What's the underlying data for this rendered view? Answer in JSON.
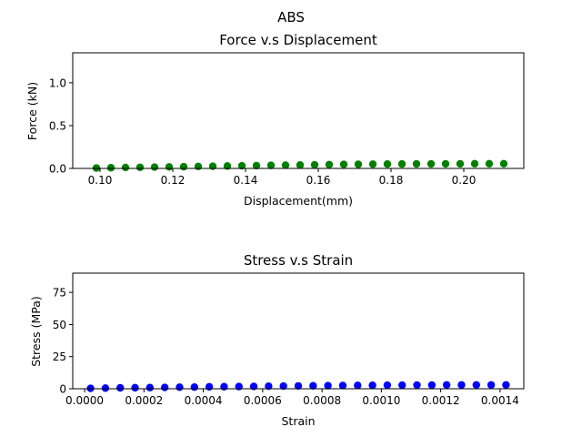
{
  "figure": {
    "suptitle": "ABS"
  },
  "chart_data": [
    {
      "type": "scatter",
      "title": "Force v.s Displacement",
      "xlabel": "Displacement(mm)",
      "ylabel": "Force (kN)",
      "xlim": [
        0.0925,
        0.2165
      ],
      "ylim": [
        0,
        1.35
      ],
      "xticks": [
        0.1,
        0.12,
        0.14,
        0.16,
        0.18,
        0.2
      ],
      "xtick_labels": [
        "0.10",
        "0.12",
        "0.14",
        "0.16",
        "0.18",
        "0.20"
      ],
      "yticks": [
        0.0,
        0.5,
        1.0
      ],
      "ytick_labels": [
        "0.0",
        "0.5",
        "1.0"
      ],
      "grid": false,
      "color": "#008000",
      "series": [
        {
          "x": [
            0.099,
            0.103,
            0.107,
            0.111,
            0.115,
            0.119,
            0.123,
            0.127,
            0.131,
            0.135,
            0.139,
            0.143,
            0.147,
            0.151,
            0.155,
            0.159,
            0.163,
            0.167,
            0.171,
            0.175,
            0.179,
            0.183,
            0.187,
            0.191,
            0.195,
            0.199,
            0.203,
            0.207,
            0.211
          ],
          "y": [
            0.005,
            0.008,
            0.011,
            0.013,
            0.015,
            0.018,
            0.02,
            0.023,
            0.026,
            0.028,
            0.031,
            0.033,
            0.036,
            0.038,
            0.04,
            0.042,
            0.045,
            0.047,
            0.048,
            0.05,
            0.051,
            0.052,
            0.053,
            0.053,
            0.054,
            0.054,
            0.055,
            0.055,
            0.055
          ]
        }
      ]
    },
    {
      "type": "scatter",
      "title": "Stress v.s Strain",
      "xlabel": "Strain",
      "ylabel": "Stress (MPa)",
      "xlim": [
        -4e-05,
        0.00148
      ],
      "ylim": [
        0,
        90
      ],
      "xticks": [
        0.0,
        0.0002,
        0.0004,
        0.0006,
        0.0008,
        0.001,
        0.0012,
        0.0014
      ],
      "xtick_labels": [
        "0.0000",
        "0.0002",
        "0.0004",
        "0.0006",
        "0.0008",
        "0.0010",
        "0.0012",
        "0.0014"
      ],
      "yticks": [
        0,
        25,
        50,
        75
      ],
      "ytick_labels": [
        "0",
        "25",
        "50",
        "75"
      ],
      "grid": false,
      "color": "#0000ff",
      "series": [
        {
          "x": [
            2e-05,
            7e-05,
            0.00012,
            0.00017,
            0.00022,
            0.00027,
            0.00032,
            0.00037,
            0.00042,
            0.00047,
            0.00052,
            0.00057,
            0.00062,
            0.00067,
            0.00072,
            0.00077,
            0.00082,
            0.00087,
            0.00092,
            0.00097,
            0.00102,
            0.00107,
            0.00112,
            0.00117,
            0.00122,
            0.00127,
            0.00132,
            0.00137,
            0.00142
          ],
          "y": [
            0.3,
            0.5,
            0.7,
            0.8,
            0.9,
            1.0,
            1.2,
            1.3,
            1.5,
            1.6,
            1.7,
            1.8,
            2.0,
            2.1,
            2.2,
            2.3,
            2.4,
            2.5,
            2.6,
            2.7,
            2.8,
            2.8,
            2.9,
            2.9,
            3.0,
            3.0,
            3.0,
            3.0,
            3.0
          ]
        }
      ]
    }
  ]
}
